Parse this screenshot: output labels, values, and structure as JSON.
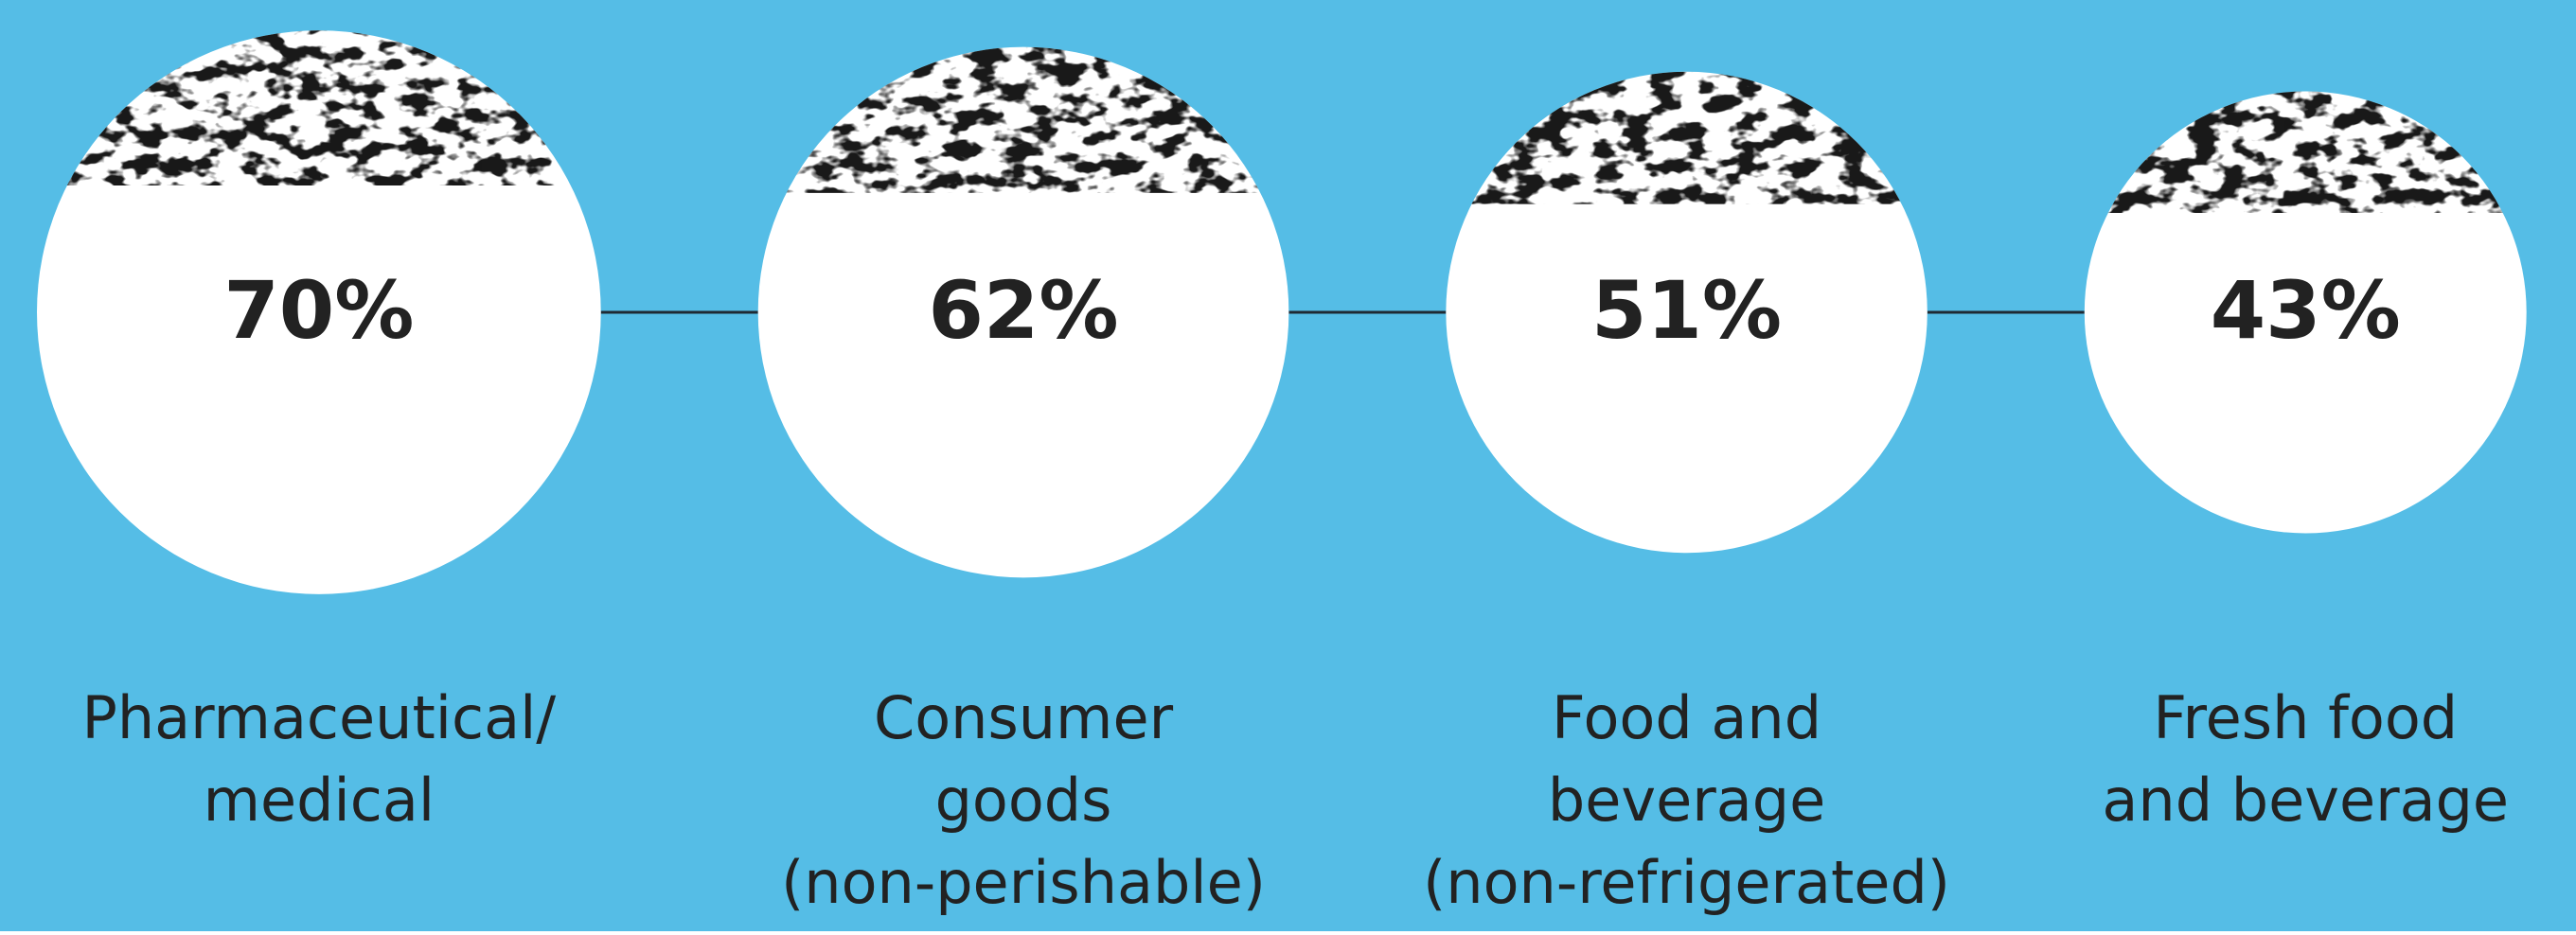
{
  "chart_data": {
    "type": "bubble",
    "categories": [
      [
        "Pharmaceutical/",
        "medical"
      ],
      [
        "Consumer",
        "goods",
        "(non-perishable)"
      ],
      [
        "Food and",
        "beverage",
        "(non-refrigerated)"
      ],
      [
        "Fresh food",
        "and beverage"
      ]
    ],
    "values": [
      70,
      62,
      51,
      43
    ],
    "value_labels": [
      "70%",
      "62%",
      "51%",
      "43%"
    ],
    "color": "#ffffff",
    "background": "#55bde6",
    "texture_color": "#1e96d8"
  }
}
